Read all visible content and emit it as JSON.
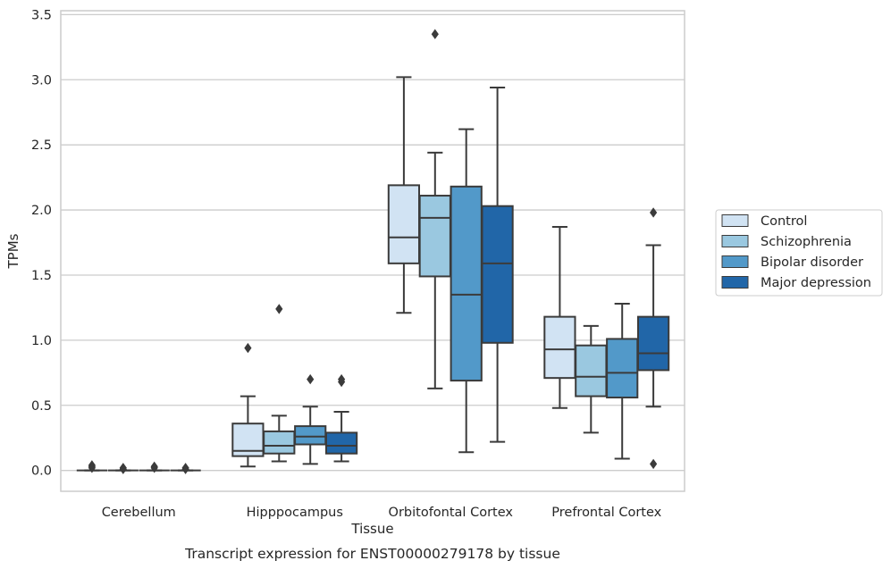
{
  "chart_data": {
    "type": "box",
    "title": "",
    "xlabel": "Tissue",
    "ylabel": "TPMs",
    "caption": "Transcript expression for ENST00000279178 by tissue",
    "ylim": [
      -0.16,
      3.53
    ],
    "yticks": [
      "0.0",
      "0.5",
      "1.0",
      "1.5",
      "2.0",
      "2.5",
      "3.0",
      "3.5"
    ],
    "ytick_values": [
      0,
      0.5,
      1.0,
      1.5,
      2.0,
      2.5,
      3.0,
      3.5
    ],
    "grid": "horizontal",
    "legend_position": "right",
    "categories": [
      "Cerebellum",
      "Hipppocampus",
      "Orbitofontal Cortex",
      "Prefrontal Cortex"
    ],
    "series": [
      {
        "name": "Control",
        "color": "#d1e3f3",
        "boxes": [
          {
            "min": 0,
            "q1": 0,
            "median": 0,
            "q3": 0,
            "max": 0,
            "outliers": [
              0.03,
              0.04,
              0.02
            ]
          },
          {
            "min": 0.03,
            "q1": 0.11,
            "median": 0.15,
            "q3": 0.36,
            "max": 0.57,
            "outliers": [
              0.94
            ]
          },
          {
            "min": 1.21,
            "q1": 1.59,
            "median": 1.79,
            "q3": 2.19,
            "max": 3.02,
            "outliers": []
          },
          {
            "min": 0.48,
            "q1": 0.71,
            "median": 0.93,
            "q3": 1.18,
            "max": 1.87,
            "outliers": []
          }
        ]
      },
      {
        "name": "Schizophrenia",
        "color": "#9ac8e0",
        "boxes": [
          {
            "min": 0,
            "q1": 0,
            "median": 0,
            "q3": 0,
            "max": 0,
            "outliers": [
              0.02,
              0.01
            ]
          },
          {
            "min": 0.07,
            "q1": 0.13,
            "median": 0.19,
            "q3": 0.3,
            "max": 0.42,
            "outliers": [
              1.24
            ]
          },
          {
            "min": 0.63,
            "q1": 1.49,
            "median": 1.94,
            "q3": 2.11,
            "max": 2.44,
            "outliers": [
              3.35
            ]
          },
          {
            "min": 0.29,
            "q1": 0.57,
            "median": 0.72,
            "q3": 0.96,
            "max": 1.11,
            "outliers": []
          }
        ]
      },
      {
        "name": "Bipolar disorder",
        "color": "#5299c9",
        "boxes": [
          {
            "min": 0,
            "q1": 0,
            "median": 0,
            "q3": 0,
            "max": 0,
            "outliers": [
              0.02,
              0.03
            ]
          },
          {
            "min": 0.05,
            "q1": 0.2,
            "median": 0.26,
            "q3": 0.34,
            "max": 0.49,
            "outliers": [
              0.7
            ]
          },
          {
            "min": 0.14,
            "q1": 0.69,
            "median": 1.35,
            "q3": 2.18,
            "max": 2.62,
            "outliers": []
          },
          {
            "min": 0.09,
            "q1": 0.56,
            "median": 0.75,
            "q3": 1.01,
            "max": 1.28,
            "outliers": []
          }
        ]
      },
      {
        "name": "Major depression",
        "color": "#2166a8",
        "boxes": [
          {
            "min": 0,
            "q1": 0,
            "median": 0,
            "q3": 0,
            "max": 0,
            "outliers": [
              0.02,
              0.01
            ]
          },
          {
            "min": 0.07,
            "q1": 0.13,
            "median": 0.19,
            "q3": 0.29,
            "max": 0.45,
            "outliers": [
              0.68,
              0.7
            ]
          },
          {
            "min": 0.22,
            "q1": 0.98,
            "median": 1.59,
            "q3": 2.03,
            "max": 2.94,
            "outliers": []
          },
          {
            "min": 0.49,
            "q1": 0.77,
            "median": 0.9,
            "q3": 1.18,
            "max": 1.73,
            "outliers": [
              1.98,
              0.05
            ]
          }
        ]
      }
    ]
  }
}
